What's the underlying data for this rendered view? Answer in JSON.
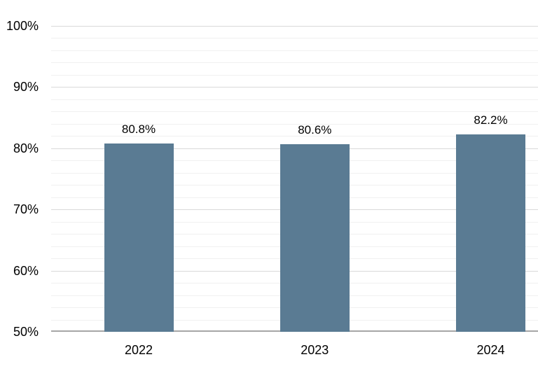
{
  "chart_data": {
    "type": "bar",
    "categories": [
      "2022",
      "2023",
      "2024"
    ],
    "values": [
      80.8,
      80.6,
      82.2
    ],
    "data_labels": [
      "80.8%",
      "80.6%",
      "82.2%"
    ],
    "ylim": [
      50,
      100
    ],
    "y_major_step": 10,
    "y_minor_step": 2,
    "y_tick_values": [
      50,
      60,
      70,
      80,
      90,
      100
    ],
    "y_tick_labels": [
      "50%",
      "60%",
      "70%",
      "80%",
      "90%",
      "100%"
    ],
    "grid": "horizontal major+minor",
    "legend": "none",
    "colors": {
      "bar": "#5a7b93",
      "major_gridline": "#d9d9d9",
      "minor_gridline": "#f0f0f0",
      "axis_line": "#a6a6a6",
      "text": "#000000",
      "background": "#ffffff"
    }
  }
}
